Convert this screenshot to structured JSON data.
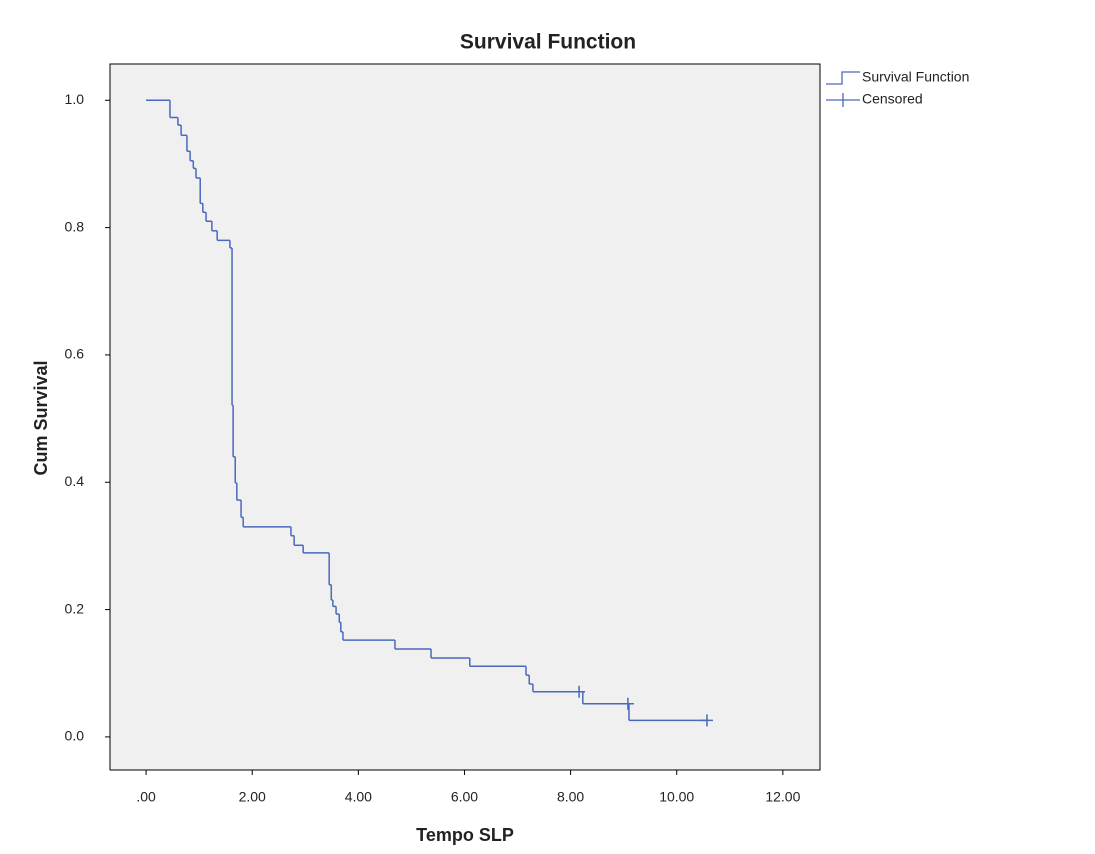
{
  "chart_data": {
    "type": "step",
    "title": "Survival Function",
    "xlabel": "Tempo SLP",
    "ylabel": "Cum Survival",
    "legend": "right",
    "background": "#f0f0f0",
    "xlim": [
      -0.68,
      12.7
    ],
    "ylim": [
      -0.052,
      1.057
    ],
    "xticks": [
      {
        "value": 0,
        "label": ".00"
      },
      {
        "value": 2,
        "label": "2.00"
      },
      {
        "value": 4,
        "label": "4.00"
      },
      {
        "value": 6,
        "label": "6.00"
      },
      {
        "value": 8,
        "label": "8.00"
      },
      {
        "value": 10,
        "label": "10.00"
      },
      {
        "value": 12,
        "label": "12.00"
      }
    ],
    "yticks": [
      {
        "value": 0,
        "label": "0.0"
      },
      0.2,
      0.4,
      0.6,
      0.8,
      {
        "value": 1,
        "label": "1.0"
      }
    ],
    "series": [
      {
        "name": "Survival Function",
        "color": "#4a69bd",
        "style": "step",
        "x": [
          0,
          0.45,
          0.6,
          0.66,
          0.77,
          0.83,
          0.89,
          0.94,
          1.02,
          1.07,
          1.13,
          1.24,
          1.34,
          1.58,
          1.62,
          1.64,
          1.68,
          1.71,
          1.79,
          1.83,
          2.73,
          2.79,
          2.96,
          3.45,
          3.49,
          3.52,
          3.58,
          3.64,
          3.67,
          3.71,
          4.69,
          5.37,
          6.1,
          7.16,
          7.22,
          7.29,
          8.23,
          9.1,
          10.57
        ],
        "values": [
          1.0,
          0.973,
          0.961,
          0.945,
          0.92,
          0.905,
          0.893,
          0.878,
          0.838,
          0.824,
          0.81,
          0.795,
          0.78,
          0.768,
          0.521,
          0.44,
          0.399,
          0.372,
          0.345,
          0.33,
          0.316,
          0.301,
          0.289,
          0.239,
          0.215,
          0.205,
          0.193,
          0.18,
          0.165,
          0.152,
          0.138,
          0.124,
          0.111,
          0.097,
          0.083,
          0.071,
          0.052,
          0.026,
          0.026
        ]
      },
      {
        "name": "Censored",
        "color": "#4a69bd",
        "style": "cross",
        "x": [
          8.16,
          9.08,
          10.57
        ],
        "values": [
          0.071,
          0.052,
          0.026
        ]
      }
    ]
  }
}
